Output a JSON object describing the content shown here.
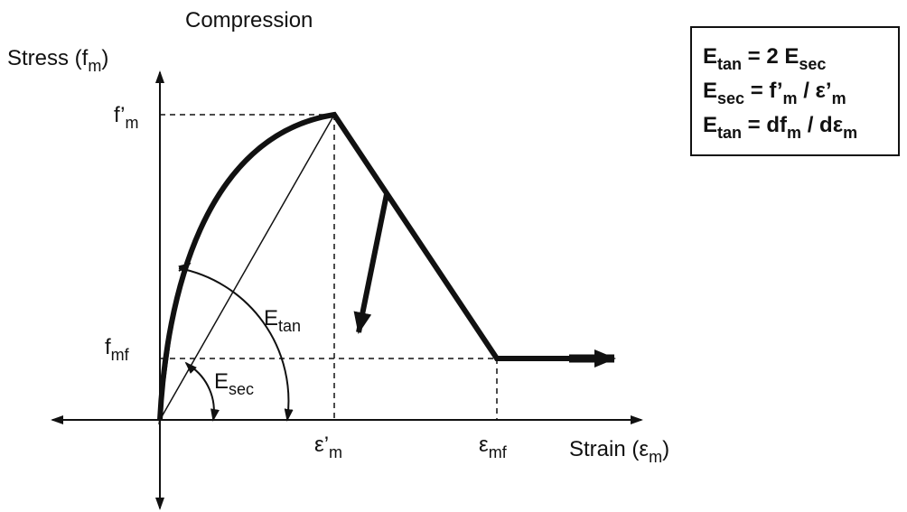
{
  "title": "Compression",
  "y_axis_label": [
    "Stress (f",
    "m",
    ")"
  ],
  "x_axis_label": [
    "Strain (ε",
    "m",
    ")"
  ],
  "labels": {
    "peak_stress": [
      "f’",
      "m"
    ],
    "final_stress": [
      "f",
      "mf"
    ],
    "peak_strain": [
      "ε’",
      "m"
    ],
    "final_strain": [
      "ε",
      "mf"
    ],
    "tangent": [
      "E",
      "tan"
    ],
    "secant": [
      "E",
      "sec"
    ]
  },
  "legend_box": [
    [
      "E",
      "tan",
      " = 2 E",
      "sec"
    ],
    [
      "E",
      "sec",
      " = f’",
      "m",
      " / ε’",
      "m"
    ],
    [
      "E",
      "tan",
      " = df",
      "m",
      " / dε",
      "m"
    ]
  ]
}
